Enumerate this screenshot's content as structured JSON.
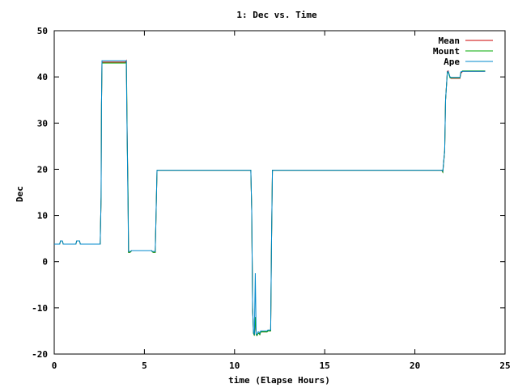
{
  "chart_data": {
    "type": "line",
    "title": "1: Dec vs. Time",
    "xlabel": "time (Elapse Hours)",
    "ylabel": "Dec",
    "xlim": [
      0,
      25
    ],
    "ylim": [
      -20,
      50
    ],
    "xticks": [
      0,
      5,
      10,
      15,
      20,
      25
    ],
    "yticks": [
      -20,
      -10,
      0,
      10,
      20,
      30,
      40,
      50
    ],
    "grid": false,
    "legend_position": "top-right",
    "series": [
      {
        "name": "Mean",
        "color": "#cc0000",
        "x": [
          0,
          0.3,
          0.35,
          0.45,
          0.5,
          1.2,
          1.25,
          1.4,
          1.45,
          2.55,
          2.6,
          2.62,
          2.65,
          3.95,
          4.0,
          4.02,
          4.1,
          4.12,
          4.2,
          4.3,
          5.4,
          5.45,
          5.5,
          5.6,
          5.7,
          10.9,
          10.95,
          11.0,
          11.05,
          11.1,
          11.15,
          11.2,
          11.25,
          11.3,
          11.35,
          11.4,
          11.45,
          11.5,
          11.8,
          11.85,
          12.0,
          12.05,
          12.1,
          12.15,
          21.5,
          21.55,
          21.65,
          21.7,
          21.8,
          21.85,
          21.95,
          22.0,
          22.5,
          22.55,
          22.65,
          23.0,
          23.9
        ],
        "y": [
          3.8,
          3.8,
          4.5,
          4.5,
          3.8,
          3.8,
          4.5,
          4.5,
          3.8,
          3.8,
          14,
          34,
          43.2,
          43.2,
          43.5,
          35,
          12,
          2.0,
          2.0,
          2.4,
          2.4,
          2.1,
          2.0,
          2.0,
          19.8,
          19.8,
          11,
          -10,
          -15.5,
          -16,
          -12,
          -15.8,
          -16,
          -15.5,
          -15.5,
          -15.8,
          -15.2,
          -15.2,
          -15.2,
          -15.0,
          -15.0,
          5,
          19.8,
          19.8,
          19.8,
          19.3,
          24,
          35,
          41.2,
          41.3,
          39.9,
          39.7,
          39.7,
          40.8,
          41.2,
          41.2,
          41.2
        ]
      },
      {
        "name": "Mount",
        "color": "#00aa00",
        "x": [
          0,
          0.3,
          0.35,
          0.45,
          0.5,
          1.2,
          1.25,
          1.4,
          1.45,
          2.55,
          2.6,
          2.62,
          2.65,
          3.95,
          4.0,
          4.02,
          4.05,
          4.1,
          4.12,
          4.2,
          4.3,
          5.4,
          5.45,
          5.5,
          5.6,
          5.7,
          10.9,
          10.95,
          11.0,
          11.05,
          11.1,
          11.15,
          11.2,
          11.25,
          11.3,
          11.35,
          11.4,
          11.45,
          11.5,
          11.8,
          11.85,
          12.0,
          12.05,
          12.1,
          12.15,
          21.5,
          21.55,
          21.65,
          21.7,
          21.8,
          21.85,
          21.95,
          22.0,
          22.5,
          22.55,
          22.65,
          23.0,
          23.9
        ],
        "y": [
          3.8,
          3.8,
          4.5,
          4.5,
          3.8,
          3.8,
          4.5,
          4.5,
          3.8,
          3.8,
          14,
          34,
          43.0,
          43.0,
          43.2,
          37,
          26,
          14,
          2.0,
          2.0,
          2.4,
          2.4,
          2.1,
          2.0,
          2.0,
          19.8,
          19.8,
          11,
          -10,
          -15.5,
          -16,
          -12,
          -15.8,
          -16,
          -15.5,
          -15.5,
          -15.8,
          -15.2,
          -15.2,
          -15.2,
          -15.0,
          -15.0,
          5,
          19.8,
          19.8,
          19.8,
          19.4,
          24,
          35,
          41.0,
          41.0,
          39.8,
          39.8,
          39.8,
          41.0,
          41.3,
          41.3,
          41.3
        ]
      },
      {
        "name": "Ape",
        "color": "#0088cc",
        "x": [
          0,
          0.3,
          0.35,
          0.45,
          0.5,
          1.2,
          1.25,
          1.4,
          1.45,
          2.55,
          2.6,
          2.62,
          2.65,
          3.95,
          4.0,
          4.02,
          4.1,
          4.12,
          4.2,
          4.3,
          5.4,
          5.45,
          5.5,
          5.6,
          5.7,
          10.9,
          10.95,
          11.0,
          11.05,
          11.1,
          11.15,
          11.2,
          11.25,
          11.3,
          11.35,
          11.4,
          11.45,
          11.5,
          11.8,
          11.85,
          12.0,
          12.05,
          12.1,
          12.15,
          21.5,
          21.55,
          21.65,
          21.7,
          21.8,
          21.85,
          21.95,
          22.0,
          22.5,
          22.55,
          22.65,
          23.0,
          23.9
        ],
        "y": [
          3.8,
          3.8,
          4.5,
          4.5,
          3.8,
          3.8,
          4.5,
          4.5,
          3.8,
          3.8,
          14,
          34,
          43.5,
          43.5,
          43.5,
          34,
          10,
          2.2,
          2.2,
          2.4,
          2.4,
          2.2,
          2.2,
          2.2,
          19.8,
          19.8,
          11,
          -10,
          -15.2,
          -15.8,
          -2.5,
          -15.6,
          -15.8,
          -15.2,
          -15.2,
          -15.5,
          -15.0,
          -15.0,
          -15.0,
          -14.8,
          -14.8,
          5,
          19.8,
          19.8,
          19.8,
          19.6,
          24,
          35,
          41.0,
          41.2,
          40.0,
          39.9,
          39.9,
          41.1,
          41.2,
          41.2,
          41.2
        ]
      }
    ]
  }
}
